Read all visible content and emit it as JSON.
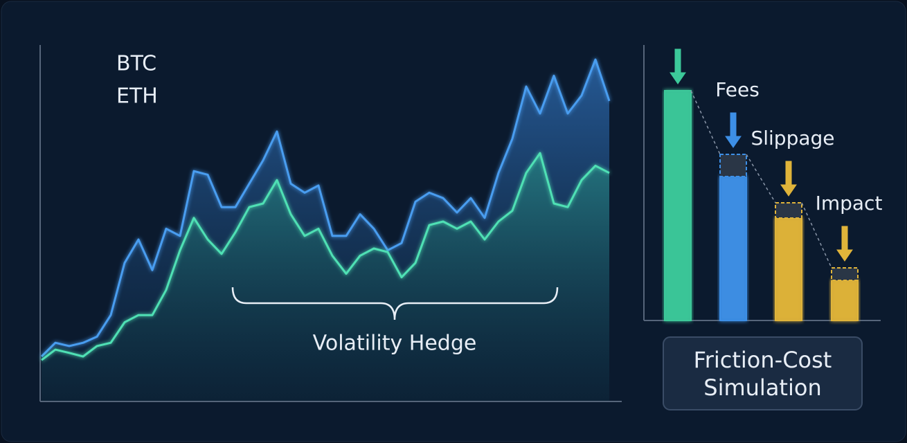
{
  "chart_data": [
    {
      "type": "line",
      "x": [
        0,
        1,
        2,
        3,
        4,
        5,
        6,
        7,
        8,
        9,
        10,
        11,
        12,
        13,
        14,
        15,
        16,
        17,
        18,
        19,
        20,
        21,
        22,
        23,
        24,
        25,
        26,
        27,
        28,
        29,
        30,
        31,
        32,
        33,
        34,
        35,
        36,
        37,
        38,
        39,
        40,
        41
      ],
      "xlim": [
        0,
        41
      ],
      "ylim": [
        0,
        100
      ],
      "series": [
        {
          "name": "BTC",
          "color": "#4a9df0",
          "values": [
            12.5,
            16.3,
            15.4,
            16.3,
            18,
            24,
            38.5,
            45,
            36.5,
            48,
            46,
            64,
            63,
            54,
            54,
            60.5,
            67,
            75,
            60.5,
            58,
            60,
            46,
            46,
            52,
            48,
            42,
            44,
            55.5,
            58,
            56.5,
            52.5,
            56.5,
            51,
            63.5,
            73,
            87.5,
            80,
            90.5,
            80,
            85,
            95,
            83.5
          ]
        },
        {
          "name": "ETH",
          "color": "#4fe0b4",
          "values": [
            11.5,
            14.4,
            13.5,
            12.5,
            15.4,
            16.3,
            22,
            24,
            24,
            31,
            42,
            51,
            45,
            41,
            47,
            54,
            55,
            61.5,
            52,
            46,
            48,
            40.5,
            35.5,
            40.5,
            42.5,
            41.5,
            34.5,
            38.5,
            49,
            50,
            48,
            50,
            45,
            50,
            53,
            63.5,
            69,
            55,
            54,
            61.5,
            65.5,
            63.5
          ]
        }
      ],
      "annotation": "Volatility Hedge"
    },
    {
      "type": "waterfall",
      "categories": [
        null,
        "Fees",
        "Slippage",
        "Impact"
      ],
      "values": [
        83,
        52,
        37,
        14.5
      ],
      "cost_values": [
        null,
        8,
        5.5,
        4.5
      ],
      "colors": [
        "#3cc99a",
        "#3d8fe6",
        "#e0b43a",
        "#e0b43a"
      ],
      "ylim": [
        0,
        100
      ],
      "caption": "Friction-Cost Simulation"
    }
  ]
}
